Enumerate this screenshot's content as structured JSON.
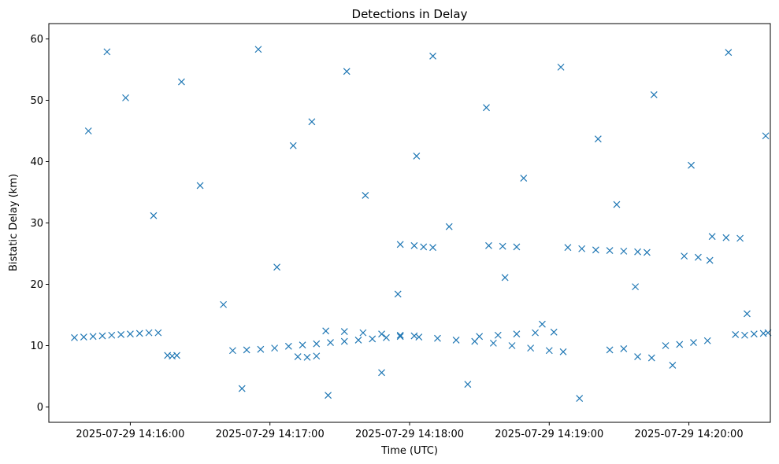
{
  "chart_data": {
    "type": "scatter",
    "title": "Detections in Delay",
    "xlabel": "Time (UTC)",
    "ylabel": "Bistatic Delay (km)",
    "x_ticks": [
      "2025-07-29 14:16:00",
      "2025-07-29 14:17:00",
      "2025-07-29 14:18:00",
      "2025-07-29 14:19:00",
      "2025-07-29 14:20:00"
    ],
    "y_ticks": [
      "0",
      "10",
      "20",
      "30",
      "40",
      "50",
      "60"
    ],
    "xlim": [
      "2025-07-29 14:15:25",
      "2025-07-29 14:20:35"
    ],
    "ylim": [
      -2.5,
      62.5
    ],
    "marker": "x",
    "marker_color": "#1f77b4",
    "grid": false,
    "series": [
      {
        "points": [
          [
            "14:15:36",
            11.3
          ],
          [
            "14:15:40",
            11.4
          ],
          [
            "14:15:44",
            11.5
          ],
          [
            "14:15:48",
            11.6
          ],
          [
            "14:15:52",
            11.7
          ],
          [
            "14:15:56",
            11.8
          ],
          [
            "14:16:00",
            11.9
          ],
          [
            "14:16:04",
            12.0
          ],
          [
            "14:16:08",
            12.1
          ],
          [
            "14:16:12",
            12.1
          ],
          [
            "14:16:16",
            8.4
          ],
          [
            "14:16:18",
            8.3
          ],
          [
            "14:16:20",
            8.4
          ],
          [
            "14:16:44",
            9.2
          ],
          [
            "14:16:50",
            9.3
          ],
          [
            "14:16:56",
            9.4
          ],
          [
            "14:17:02",
            9.6
          ],
          [
            "14:17:08",
            9.9
          ],
          [
            "14:17:14",
            10.1
          ],
          [
            "14:17:20",
            10.3
          ],
          [
            "14:17:26",
            10.5
          ],
          [
            "14:17:32",
            10.7
          ],
          [
            "14:17:38",
            10.9
          ],
          [
            "14:17:44",
            11.1
          ],
          [
            "14:17:50",
            11.3
          ],
          [
            "14:17:56",
            11.5
          ],
          [
            "14:18:02",
            11.6
          ],
          [
            "14:17:12",
            8.2
          ],
          [
            "14:17:16",
            8.1
          ],
          [
            "14:17:20",
            8.3
          ],
          [
            "14:17:24",
            12.4
          ],
          [
            "14:17:32",
            12.3
          ],
          [
            "14:17:40",
            12.1
          ],
          [
            "14:17:48",
            11.9
          ],
          [
            "14:17:56",
            11.7
          ],
          [
            "14:18:04",
            11.4
          ],
          [
            "14:18:12",
            11.2
          ],
          [
            "14:18:20",
            10.9
          ],
          [
            "14:18:28",
            10.7
          ],
          [
            "14:18:36",
            10.4
          ],
          [
            "14:18:44",
            10.0
          ],
          [
            "14:18:52",
            9.6
          ],
          [
            "14:19:00",
            9.2
          ],
          [
            "14:19:06",
            9.0
          ],
          [
            "14:18:30",
            11.5
          ],
          [
            "14:18:38",
            11.7
          ],
          [
            "14:18:46",
            11.9
          ],
          [
            "14:18:54",
            12.1
          ],
          [
            "14:19:02",
            12.2
          ],
          [
            "14:17:56",
            26.5
          ],
          [
            "14:18:02",
            26.3
          ],
          [
            "14:18:06",
            26.1
          ],
          [
            "14:18:10",
            26.0
          ],
          [
            "14:18:34",
            26.3
          ],
          [
            "14:18:40",
            26.2
          ],
          [
            "14:18:46",
            26.1
          ],
          [
            "14:19:08",
            26.0
          ],
          [
            "14:19:14",
            25.8
          ],
          [
            "14:19:20",
            25.6
          ],
          [
            "14:19:26",
            25.5
          ],
          [
            "14:19:32",
            25.4
          ],
          [
            "14:19:38",
            25.3
          ],
          [
            "14:19:42",
            25.2
          ],
          [
            "14:19:26",
            9.3
          ],
          [
            "14:19:32",
            9.5
          ],
          [
            "14:19:38",
            8.2
          ],
          [
            "14:19:44",
            8.0
          ],
          [
            "14:19:50",
            10.0
          ],
          [
            "14:19:56",
            10.2
          ],
          [
            "14:20:02",
            10.5
          ],
          [
            "14:20:08",
            10.8
          ],
          [
            "14:19:58",
            24.6
          ],
          [
            "14:20:04",
            24.4
          ],
          [
            "14:20:10",
            27.8
          ],
          [
            "14:20:16",
            27.6
          ],
          [
            "14:20:22",
            27.5
          ],
          [
            "14:20:20",
            11.8
          ],
          [
            "14:20:24",
            11.7
          ],
          [
            "14:20:28",
            11.9
          ],
          [
            "14:20:32",
            12.0
          ],
          [
            "14:20:34",
            12.1
          ],
          [
            "14:15:42",
            45.0
          ],
          [
            "14:15:50",
            57.9
          ],
          [
            "14:15:58",
            50.4
          ],
          [
            "14:16:10",
            31.2
          ],
          [
            "14:16:22",
            53.0
          ],
          [
            "14:16:30",
            36.1
          ],
          [
            "14:16:40",
            16.7
          ],
          [
            "14:16:48",
            3.0
          ],
          [
            "14:16:55",
            58.3
          ],
          [
            "14:17:03",
            22.8
          ],
          [
            "14:17:10",
            42.6
          ],
          [
            "14:17:18",
            46.5
          ],
          [
            "14:17:25",
            1.9
          ],
          [
            "14:17:33",
            54.7
          ],
          [
            "14:17:41",
            34.5
          ],
          [
            "14:17:48",
            5.6
          ],
          [
            "14:17:55",
            18.4
          ],
          [
            "14:18:03",
            40.9
          ],
          [
            "14:18:10",
            57.2
          ],
          [
            "14:18:17",
            29.4
          ],
          [
            "14:18:25",
            3.7
          ],
          [
            "14:18:33",
            48.8
          ],
          [
            "14:18:41",
            21.1
          ],
          [
            "14:18:49",
            37.3
          ],
          [
            "14:18:57",
            13.5
          ],
          [
            "14:19:05",
            55.4
          ],
          [
            "14:19:13",
            1.4
          ],
          [
            "14:19:21",
            43.7
          ],
          [
            "14:19:29",
            33.0
          ],
          [
            "14:19:37",
            19.6
          ],
          [
            "14:19:45",
            50.9
          ],
          [
            "14:19:53",
            6.8
          ],
          [
            "14:20:01",
            39.4
          ],
          [
            "14:20:09",
            23.9
          ],
          [
            "14:20:17",
            57.8
          ],
          [
            "14:20:25",
            15.2
          ],
          [
            "14:20:33",
            44.2
          ]
        ]
      }
    ]
  }
}
